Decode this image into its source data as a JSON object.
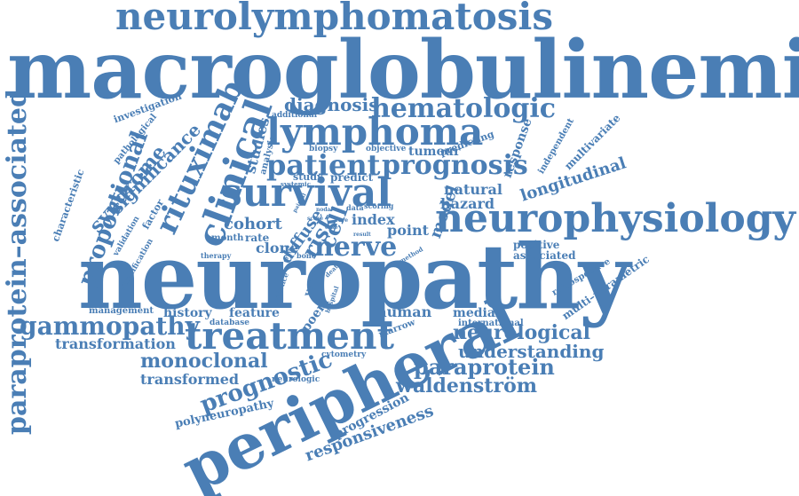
{
  "color": "#4a7eb5",
  "words": [
    "neurolymphomatosis",
    "macroglobulinemia",
    "neuropathy",
    "peripheral",
    "paraprotein–associated",
    "neurophysiology",
    "survival",
    "treatment",
    "clinical",
    "rituximab",
    "lymphoma",
    "patient",
    "prognosis",
    "hematologic",
    "gammopathy",
    "proportional",
    "syndrome",
    "significance",
    "nerve",
    "diagnosis",
    "prognostic",
    "monoclonal",
    "paraprotein",
    "waldenström",
    "longitudinal",
    "neurological",
    "understanding",
    "responsiveness",
    "transformation",
    "transformed",
    "polyneuropathy",
    "progression",
    "cell",
    "model",
    "risk",
    "diffuse",
    "cohort",
    "clone",
    "index",
    "point",
    "natural",
    "hazard",
    "response",
    "multivariate",
    "independent",
    "positive",
    "associated",
    "retrospective",
    "multi–parametric",
    "median",
    "human",
    "international",
    "history",
    "feature",
    "management",
    "poem",
    "database",
    "marrow",
    "cytometry",
    "neurologic",
    "tumour",
    "predicting",
    "objective",
    "predict",
    "study",
    "studies",
    "analysis",
    "biopsy",
    "additional",
    "investigation",
    "pathological",
    "characteristic",
    "factor",
    "validation",
    "stratification",
    "month",
    "rate",
    "therapy",
    "year",
    "evidence",
    "bone",
    "death",
    "hospital",
    "systemic",
    "painful",
    "scoring",
    "data",
    "method",
    "result",
    "score",
    "nodal",
    "group",
    "rare",
    "case"
  ]
}
